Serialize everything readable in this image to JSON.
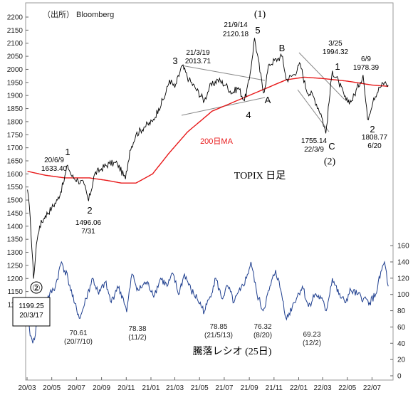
{
  "chart_data": {
    "type": "line",
    "source": "（出所） Bloomberg",
    "x_ticks": [
      "20/03",
      "20/05",
      "20/07",
      "20/09",
      "20/11",
      "21/01",
      "21/03",
      "21/05",
      "21/07",
      "21/09",
      "21/11",
      "22/01",
      "22/03",
      "22/05",
      "22/07"
    ],
    "y_left": {
      "min": 1050,
      "max": 2250,
      "step": 50
    },
    "y_right": {
      "min": 0,
      "max": 160,
      "step": 20
    },
    "topix": {
      "title": "TOPIX 日足",
      "ma_label": "200日MA",
      "ma_color": "#e8191a",
      "series_color": "#000000",
      "points": [
        [
          "2020-03-02",
          1540
        ],
        [
          "2020-03-09",
          1430
        ],
        [
          "2020-03-17",
          1199.25
        ],
        [
          "2020-03-24",
          1330
        ],
        [
          "2020-04-01",
          1400
        ],
        [
          "2020-04-15",
          1440
        ],
        [
          "2020-05-01",
          1470
        ],
        [
          "2020-05-15",
          1500
        ],
        [
          "2020-05-29",
          1560
        ],
        [
          "2020-06-09",
          1633.4
        ],
        [
          "2020-06-20",
          1590
        ],
        [
          "2020-07-05",
          1575
        ],
        [
          "2020-07-20",
          1560
        ],
        [
          "2020-07-31",
          1496.06
        ],
        [
          "2020-08-15",
          1600
        ],
        [
          "2020-09-01",
          1620
        ],
        [
          "2020-09-20",
          1640
        ],
        [
          "2020-10-10",
          1640
        ],
        [
          "2020-10-30",
          1580
        ],
        [
          "2020-11-10",
          1690
        ],
        [
          "2020-11-25",
          1750
        ],
        [
          "2020-12-15",
          1780
        ],
        [
          "2021-01-05",
          1800
        ],
        [
          "2021-01-20",
          1850
        ],
        [
          "2021-02-05",
          1900
        ],
        [
          "2021-02-16",
          1960
        ],
        [
          "2021-03-01",
          1930
        ],
        [
          "2021-03-19",
          2013.71
        ],
        [
          "2021-04-05",
          1960
        ],
        [
          "2021-04-20",
          1930
        ],
        [
          "2021-05-13",
          1880
        ],
        [
          "2021-05-25",
          1930
        ],
        [
          "2021-06-15",
          1960
        ],
        [
          "2021-07-05",
          1940
        ],
        [
          "2021-07-20",
          1910
        ],
        [
          "2021-08-05",
          1930
        ],
        [
          "2021-08-20",
          1880
        ],
        [
          "2021-09-01",
          1960
        ],
        [
          "2021-09-14",
          2120.18
        ],
        [
          "2021-10-06",
          1910
        ],
        [
          "2021-10-20",
          2020
        ],
        [
          "2021-11-10",
          2040
        ],
        [
          "2021-11-22",
          2050
        ],
        [
          "2021-12-01",
          1960
        ],
        [
          "2021-12-20",
          1980
        ],
        [
          "2022-01-05",
          2020
        ],
        [
          "2022-01-20",
          1920
        ],
        [
          "2022-02-05",
          1900
        ],
        [
          "2022-02-25",
          1830
        ],
        [
          "2022-03-09",
          1755.14
        ],
        [
          "2022-03-25",
          1994.32
        ],
        [
          "2022-04-10",
          1950
        ],
        [
          "2022-04-28",
          1880
        ],
        [
          "2022-05-12",
          1880
        ],
        [
          "2022-06-09",
          1978.39
        ],
        [
          "2022-06-20",
          1808.77
        ],
        [
          "2022-07-05",
          1890
        ],
        [
          "2022-07-20",
          1930
        ],
        [
          "2022-08-01",
          1950
        ],
        [
          "2022-08-10",
          1940
        ]
      ],
      "ma200": [
        [
          "2020-03-02",
          1610
        ],
        [
          "2020-04-15",
          1595
        ],
        [
          "2020-06-01",
          1585
        ],
        [
          "2020-08-01",
          1585
        ],
        [
          "2020-09-15",
          1575
        ],
        [
          "2020-10-20",
          1565
        ],
        [
          "2020-11-25",
          1565
        ],
        [
          "2021-01-05",
          1600
        ],
        [
          "2021-02-15",
          1680
        ],
        [
          "2021-04-01",
          1760
        ],
        [
          "2021-06-01",
          1840
        ],
        [
          "2021-08-01",
          1880
        ],
        [
          "2021-10-01",
          1920
        ],
        [
          "2021-12-01",
          1960
        ],
        [
          "2022-01-15",
          1970
        ],
        [
          "2022-03-01",
          1965
        ],
        [
          "2022-05-01",
          1955
        ],
        [
          "2022-07-01",
          1940
        ],
        [
          "2022-08-10",
          1935
        ]
      ]
    },
    "ratio": {
      "title": "騰落レシオ (25日)",
      "series_color": "#1f3f8f",
      "points": [
        [
          "2020-03-02",
          65
        ],
        [
          "2020-03-15",
          40
        ],
        [
          "2020-04-01",
          75
        ],
        [
          "2020-04-20",
          95
        ],
        [
          "2020-05-10",
          110
        ],
        [
          "2020-05-25",
          140
        ],
        [
          "2020-06-10",
          120
        ],
        [
          "2020-06-25",
          90
        ],
        [
          "2020-07-10",
          70.61
        ],
        [
          "2020-07-25",
          95
        ],
        [
          "2020-08-10",
          120
        ],
        [
          "2020-08-25",
          100
        ],
        [
          "2020-09-10",
          115
        ],
        [
          "2020-09-25",
          90
        ],
        [
          "2020-10-10",
          110
        ],
        [
          "2020-10-25",
          95
        ],
        [
          "2020-11-02",
          78.38
        ],
        [
          "2020-11-15",
          125
        ],
        [
          "2020-12-01",
          105
        ],
        [
          "2020-12-20",
          115
        ],
        [
          "2021-01-10",
          100
        ],
        [
          "2021-01-25",
          120
        ],
        [
          "2021-02-10",
          110
        ],
        [
          "2021-02-25",
          125
        ],
        [
          "2021-03-10",
          100
        ],
        [
          "2021-03-25",
          125
        ],
        [
          "2021-04-10",
          105
        ],
        [
          "2021-04-25",
          95
        ],
        [
          "2021-05-13",
          78.85
        ],
        [
          "2021-05-25",
          95
        ],
        [
          "2021-06-10",
          120
        ],
        [
          "2021-06-25",
          95
        ],
        [
          "2021-07-10",
          110
        ],
        [
          "2021-07-25",
          90
        ],
        [
          "2021-08-10",
          105
        ],
        [
          "2021-08-25",
          120
        ],
        [
          "2021-09-05",
          140
        ],
        [
          "2021-09-20",
          100
        ],
        [
          "2021-10-05",
          80
        ],
        [
          "2021-10-20",
          105
        ],
        [
          "2021-11-05",
          130
        ],
        [
          "2021-11-20",
          100
        ],
        [
          "2021-12-02",
          69.23
        ],
        [
          "2021-12-20",
          90
        ],
        [
          "2022-01-10",
          110
        ],
        [
          "2022-01-25",
          85
        ],
        [
          "2022-02-10",
          100
        ],
        [
          "2022-02-25",
          95
        ],
        [
          "2022-03-10",
          80
        ],
        [
          "2022-03-25",
          120
        ],
        [
          "2022-04-10",
          100
        ],
        [
          "2022-04-25",
          90
        ],
        [
          "2022-05-10",
          105
        ],
        [
          "2022-05-25",
          100
        ],
        [
          "2022-06-10",
          95
        ],
        [
          "2022-06-25",
          90
        ],
        [
          "2022-07-10",
          100
        ],
        [
          "2022-07-25",
          130
        ],
        [
          "2022-08-01",
          140
        ],
        [
          "2022-08-10",
          110
        ]
      ]
    },
    "annotations": {
      "boxed_circle": "②",
      "boxed_low": [
        "1199.25",
        "20/3/17"
      ],
      "elliott_main_top": "(1)",
      "elliott_main_bottom": "(2)",
      "peak_2020": {
        "wave": "1",
        "date": "20/6/9",
        "value": "1633.40"
      },
      "low_2020": {
        "wave": "2",
        "value": "1496.06",
        "date": "7/31"
      },
      "wave3": {
        "wave": "3",
        "date": "21/3/19",
        "value": "2013.71"
      },
      "wave4": {
        "wave": "4"
      },
      "wave5": {
        "wave": "5",
        "date": "21/9/14",
        "value": "2120.18"
      },
      "waveA": {
        "wave": "A"
      },
      "waveB": {
        "wave": "B"
      },
      "waveC": {
        "wave": "C",
        "value": "1755.14",
        "date": "22/3/9"
      },
      "sub1_a": {
        "wave": "1",
        "date": "3/25",
        "value": "1994.32"
      },
      "sub1_b": {
        "date": "6/9",
        "value": "1978.39"
      },
      "sub2": {
        "wave": "2",
        "value": "1808.77",
        "date": "6/20"
      },
      "ratio_labels": [
        {
          "value": "70.61",
          "date": "(20/7/10)"
        },
        {
          "value": "78.38",
          "date": "(11/2)"
        },
        {
          "value": "78.85",
          "date": "(21/5/13)"
        },
        {
          "value": "76.32",
          "date": "(8/20)"
        },
        {
          "value": "69.23",
          "date": "(12/2)"
        }
      ]
    }
  }
}
